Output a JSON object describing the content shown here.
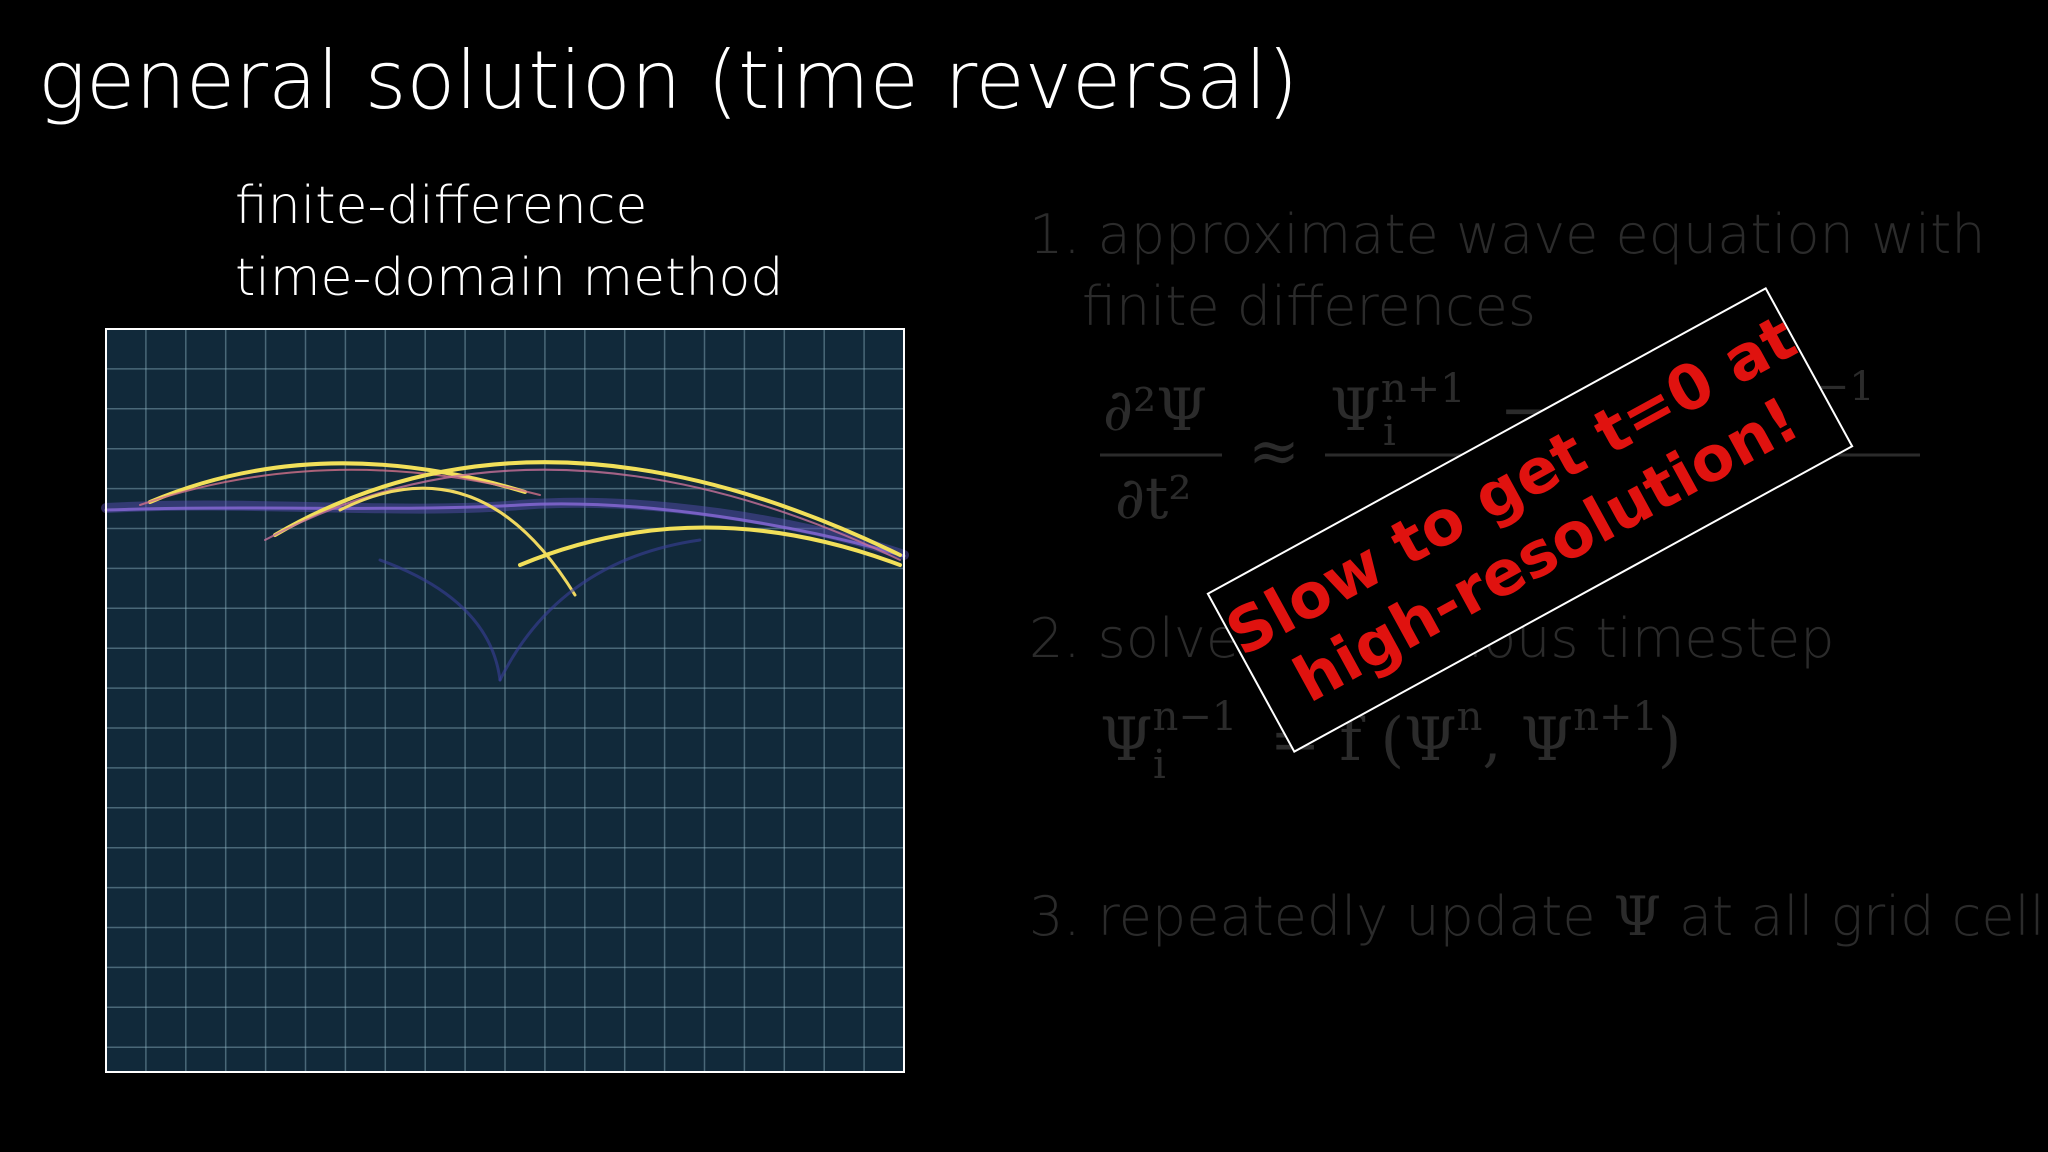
{
  "header": {
    "title": "general solution (time reversal)"
  },
  "panel": {
    "caption_lines": [
      "finite-difference",
      "time-domain method"
    ]
  },
  "steps": [
    {
      "lines": [
        "1. approximate wave equation with",
        "finite differences"
      ],
      "equation": {
        "lhs_num": "∂²Ψ",
        "lhs_den": "∂t²",
        "approx": "≈",
        "rhs_psi": "Ψ",
        "rhs_sup": "n+1",
        "rhs_sub": "i",
        "rhs_minus": "−",
        "rhs_tail_sup": "n−1"
      }
    },
    {
      "lines": [
        "2. solve for previous timestep"
      ],
      "equation": {
        "psi": "Ψ",
        "sup": "n−1",
        "sub": "i",
        "eq": "= f (Ψ",
        "sup_n": "n",
        "comma": ", Ψ",
        "sup_n1": "n+1",
        "close": ")"
      }
    },
    {
      "before": "3. repeatedly update",
      "symbol": "Ψ",
      "after": "at all grid cells"
    }
  ],
  "callout": {
    "lines": [
      "Slow to get t=0 at",
      "high-resolution!"
    ]
  }
}
